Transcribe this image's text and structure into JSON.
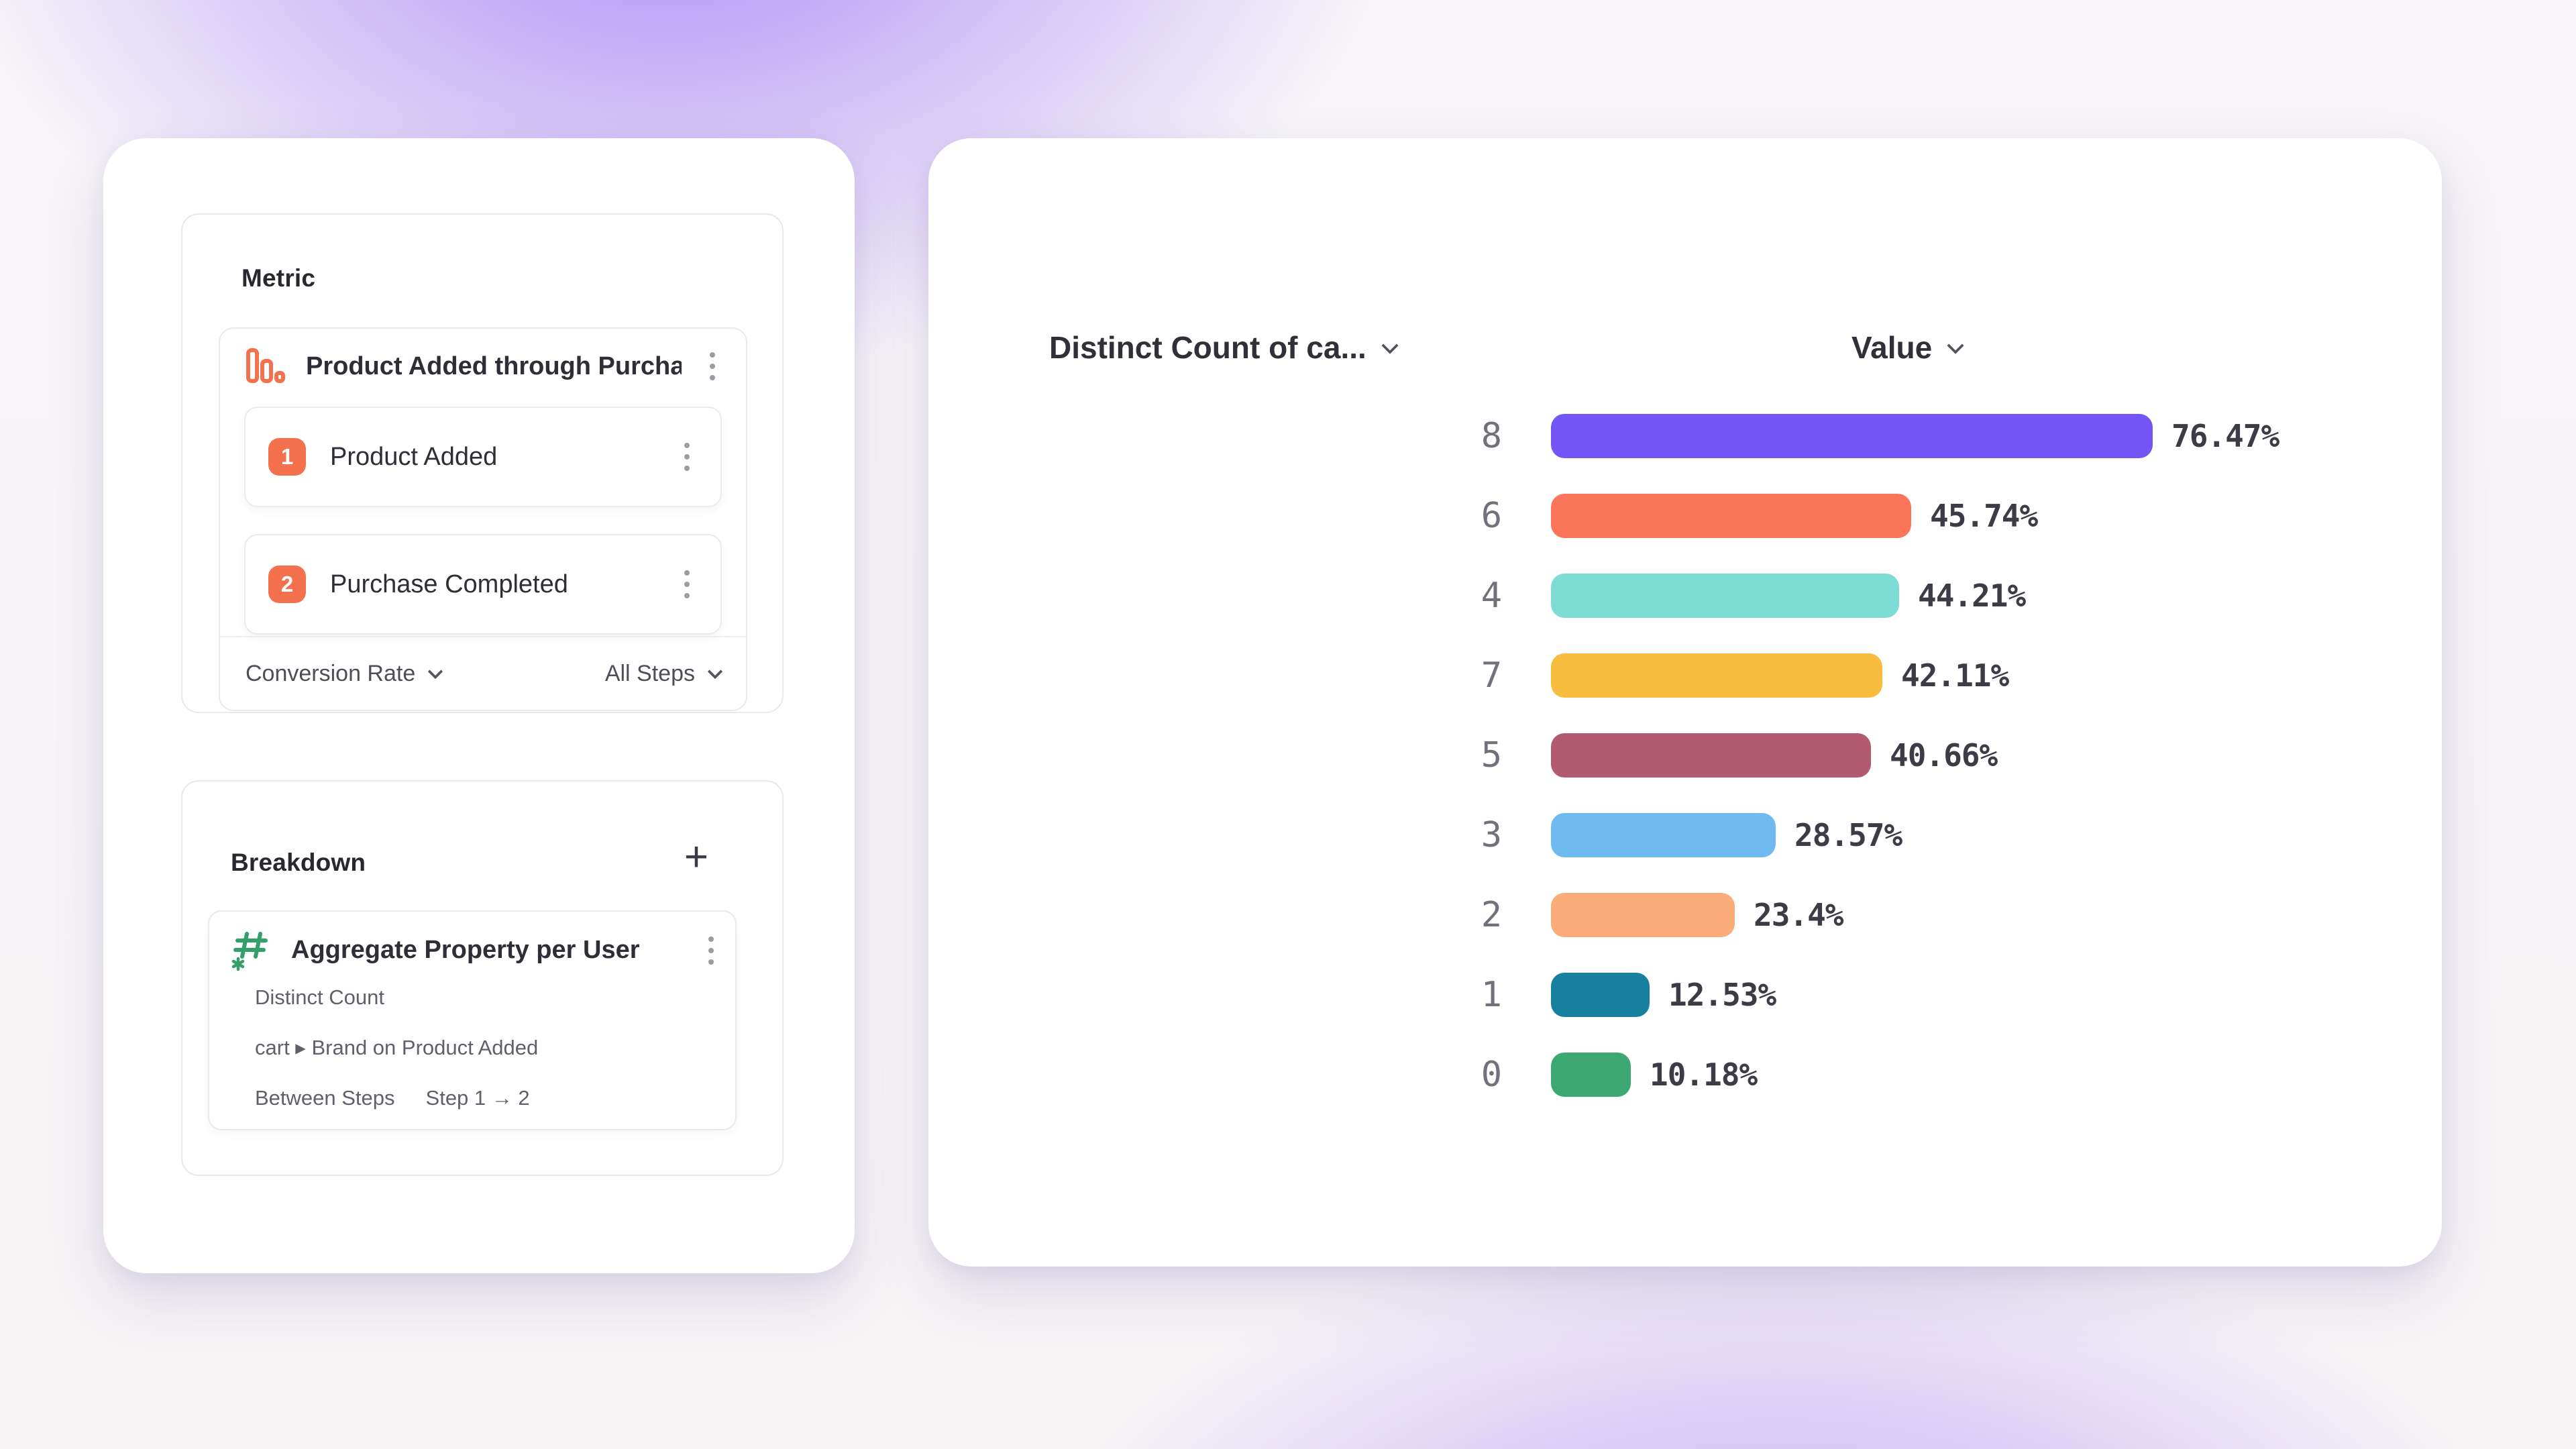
{
  "metric_panel": {
    "title": "Metric",
    "funnel": {
      "name": "Product Added through Purcha...",
      "steps": [
        {
          "index": "1",
          "label": "Product Added"
        },
        {
          "index": "2",
          "label": "Purchase Completed"
        }
      ],
      "footer": {
        "left_label": "Conversion Rate",
        "right_label": "All Steps"
      }
    }
  },
  "breakdown_panel": {
    "title": "Breakdown",
    "add_label": "+",
    "item": {
      "name": "Aggregate Property per User",
      "rows": [
        {
          "label": "Distinct Count"
        },
        {
          "label": "cart ▸ Brand on Product Added"
        },
        {
          "label": "Between Steps",
          "value": "Step 1 → 2"
        }
      ]
    }
  },
  "chart": {
    "left_header": "Distinct Count of ca...",
    "right_header": "Value"
  },
  "chart_data": {
    "type": "bar",
    "orientation": "horizontal",
    "title": "",
    "xlabel": "",
    "ylabel": "",
    "xlim": [
      0,
      100
    ],
    "grid": false,
    "legend": false,
    "categories": [
      "8",
      "6",
      "4",
      "7",
      "5",
      "3",
      "2",
      "1",
      "0"
    ],
    "values": [
      76.47,
      45.74,
      44.21,
      42.11,
      40.66,
      28.57,
      23.4,
      12.53,
      10.18
    ],
    "labels": [
      "76.47%",
      "45.74%",
      "44.21%",
      "42.11%",
      "40.66%",
      "28.57%",
      "23.4%",
      "12.53%",
      "10.18%"
    ],
    "colors": [
      "#7456F6",
      "#FB755A",
      "#7EDCD6",
      "#F8BC3F",
      "#B25A72",
      "#6FBBEF",
      "#FBAD79",
      "#18809F",
      "#3EA873"
    ]
  },
  "ui_colors": {
    "accent_orange": "#F4714E",
    "hash_green": "#33A06A",
    "text_dark": "#2e2e36",
    "text_gray": "#60606a"
  }
}
